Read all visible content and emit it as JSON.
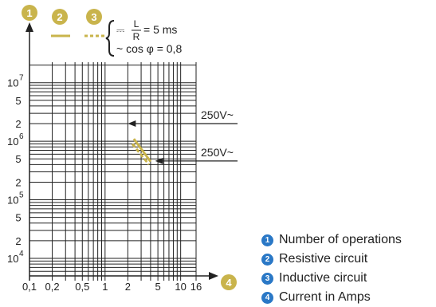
{
  "chart_data": {
    "type": "line",
    "x_axis": {
      "scale": "log",
      "ticks": [
        "0,1",
        "0,2",
        "0,5",
        "1",
        "2",
        "5",
        "10",
        "16"
      ]
    },
    "y_axis": {
      "scale": "log",
      "ticks": [
        {
          "type": "power",
          "base": "10",
          "exp": "7"
        },
        {
          "type": "plain",
          "text": "5"
        },
        {
          "type": "plain",
          "text": "2"
        },
        {
          "type": "power",
          "base": "10",
          "exp": "6"
        },
        {
          "type": "plain",
          "text": "5"
        },
        {
          "type": "plain",
          "text": "2"
        },
        {
          "type": "power",
          "base": "10",
          "exp": "5"
        },
        {
          "type": "plain",
          "text": "5"
        },
        {
          "type": "plain",
          "text": "2"
        },
        {
          "type": "power",
          "base": "10",
          "exp": "4"
        }
      ]
    },
    "series": [
      {
        "marker": "2",
        "style": "solid",
        "color": "#c9b44c",
        "points": [
          [
            2.4,
            1100000
          ],
          [
            4.0,
            450000
          ]
        ]
      },
      {
        "marker": "3",
        "style": "dashed",
        "color": "#c9b44c",
        "points": [
          [
            2.3,
            900000
          ],
          [
            3.8,
            400000
          ]
        ]
      }
    ],
    "annotations": [
      {
        "text": "250V~",
        "x": 2,
        "y": 2000000
      },
      {
        "text": "250V~",
        "x": 4.6,
        "y": 460000
      }
    ],
    "legend_text": {
      "dc_prefix": "⎓",
      "fraction_numerator": "L",
      "fraction_denominator": "R",
      "dc_suffix": "= 5 ms",
      "ac_text": "~ cos φ = 0,8"
    },
    "grid": true
  },
  "markers": [
    "1",
    "2",
    "3",
    "4"
  ],
  "legend": [
    {
      "num": "1",
      "text": "Number of operations"
    },
    {
      "num": "2",
      "text": "Resistive circuit"
    },
    {
      "num": "3",
      "text": "Inductive circuit"
    },
    {
      "num": "4",
      "text": "Current in Amps"
    }
  ],
  "colors": {
    "accent": "#2a78c6",
    "curve": "#c9b44c",
    "grid": "#222222"
  }
}
